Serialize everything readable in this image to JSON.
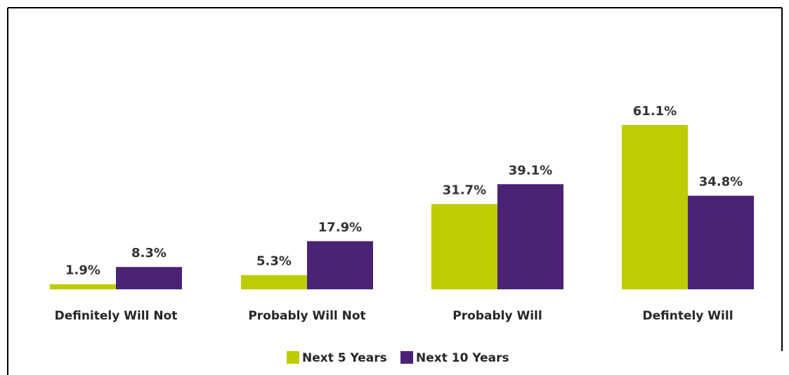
{
  "chart_data": {
    "type": "bar",
    "categories": [
      "Definitely Will Not",
      "Probably Will Not",
      "Probably Will",
      "Defintely Will"
    ],
    "series": [
      {
        "name": "Next 5 Years",
        "values": [
          1.9,
          5.3,
          31.7,
          61.1
        ],
        "labels": [
          "1.9%",
          "5.3%",
          "31.7%",
          "61.1%"
        ],
        "color": "#bccd03"
      },
      {
        "name": "Next 10 Years",
        "values": [
          8.3,
          17.9,
          39.1,
          34.8
        ],
        "labels": [
          "8.3%",
          "17.9%",
          "39.1%",
          "34.8%"
        ],
        "color": "#4a2377"
      }
    ],
    "title": "",
    "xlabel": "",
    "ylabel": "",
    "ylim": [
      0,
      65
    ],
    "grid": false,
    "legend_position": "bottom"
  }
}
